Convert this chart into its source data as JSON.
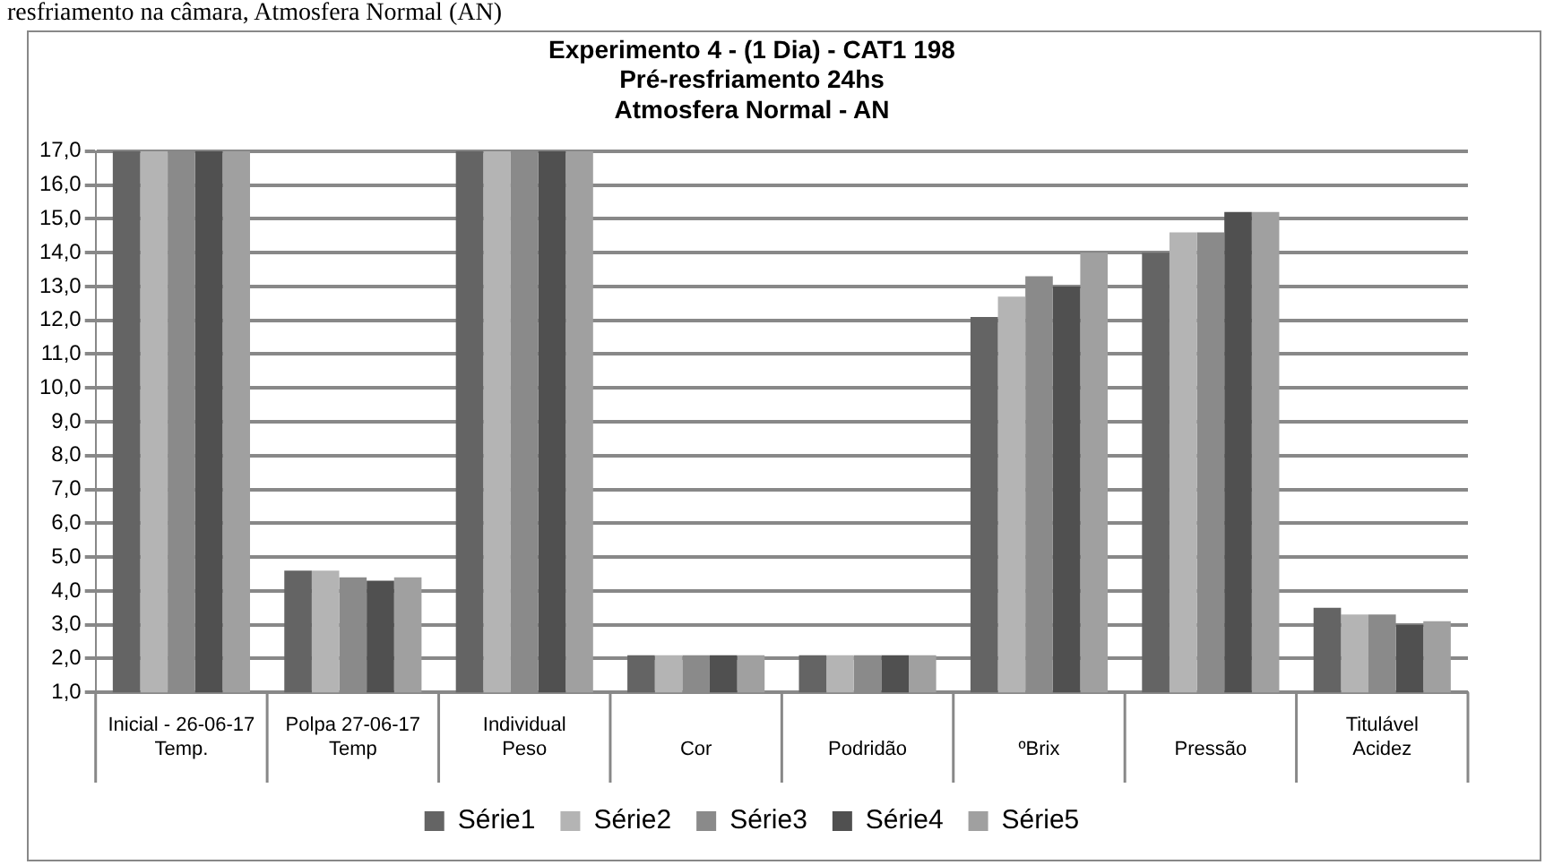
{
  "chart_data": {
    "type": "bar",
    "title": [
      "Experimento 4 - (1 Dia) - CAT1 198",
      "Pré-resfriamento 24hs",
      "Atmosfera Normal - AN"
    ],
    "annotations": [
      "resfriamento na câmara, Atmosfera Normal (AN)"
    ],
    "categories": [
      "Inicial - 26-06-17\nTemp.",
      "Polpa 27-06-17\nTemp",
      "Individual\nPeso",
      "\nCor",
      "\nPodridão",
      "\nºBrix",
      "\nPressão",
      "Titulável\nAcidez"
    ],
    "series": [
      {
        "name": "Série1",
        "color": "#646464",
        "values": [
          17,
          4.6,
          17,
          2.1,
          2.1,
          12.1,
          14.0,
          3.5
        ]
      },
      {
        "name": "Série2",
        "color": "#b4b4b4",
        "values": [
          17,
          4.6,
          17,
          2.1,
          2.1,
          12.7,
          14.6,
          3.3
        ]
      },
      {
        "name": "Série3",
        "color": "#8a8a8a",
        "values": [
          17,
          4.4,
          17,
          2.1,
          2.1,
          13.3,
          14.6,
          3.3
        ]
      },
      {
        "name": "Série4",
        "color": "#505050",
        "values": [
          17,
          4.3,
          17,
          2.1,
          2.1,
          13.0,
          15.2,
          3.0
        ]
      },
      {
        "name": "Série5",
        "color": "#a0a0a0",
        "values": [
          17,
          4.4,
          17,
          2.1,
          2.1,
          14.0,
          15.2,
          3.1
        ]
      }
    ],
    "ylim": [
      1,
      17
    ],
    "yticks": [
      {
        "value": 1,
        "label": "1,0"
      },
      {
        "value": 2,
        "label": "2,0"
      },
      {
        "value": 3,
        "label": "3,0"
      },
      {
        "value": 4,
        "label": "4,0"
      },
      {
        "value": 5,
        "label": "5,0"
      },
      {
        "value": 6,
        "label": "6,0"
      },
      {
        "value": 7,
        "label": "7,0"
      },
      {
        "value": 8,
        "label": "8,0"
      },
      {
        "value": 9,
        "label": "9,0"
      },
      {
        "value": 10,
        "label": "10,0"
      },
      {
        "value": 11,
        "label": "11,0"
      },
      {
        "value": 12,
        "label": "12,0"
      },
      {
        "value": 13,
        "label": "13,0"
      },
      {
        "value": 14,
        "label": "14,0"
      },
      {
        "value": 15,
        "label": "15,0"
      },
      {
        "value": 16,
        "label": "16,0"
      },
      {
        "value": 17,
        "label": "17,0"
      }
    ],
    "grid": "y",
    "legend": "bottom"
  }
}
